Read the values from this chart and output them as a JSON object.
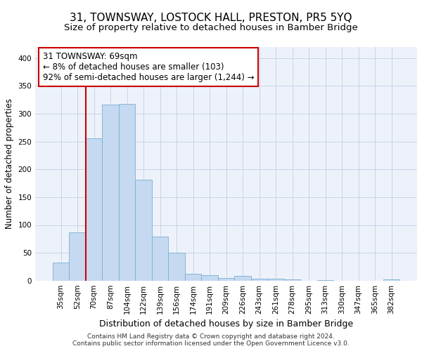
{
  "title": "31, TOWNSWAY, LOSTOCK HALL, PRESTON, PR5 5YQ",
  "subtitle": "Size of property relative to detached houses in Bamber Bridge",
  "xlabel": "Distribution of detached houses by size in Bamber Bridge",
  "ylabel": "Number of detached properties",
  "footer1": "Contains HM Land Registry data © Crown copyright and database right 2024.",
  "footer2": "Contains public sector information licensed under the Open Government Licence v3.0.",
  "categories": [
    "35sqm",
    "52sqm",
    "70sqm",
    "87sqm",
    "104sqm",
    "122sqm",
    "139sqm",
    "156sqm",
    "174sqm",
    "191sqm",
    "209sqm",
    "226sqm",
    "243sqm",
    "261sqm",
    "278sqm",
    "295sqm",
    "313sqm",
    "330sqm",
    "347sqm",
    "365sqm",
    "382sqm"
  ],
  "values": [
    33,
    87,
    256,
    316,
    318,
    181,
    79,
    50,
    12,
    10,
    5,
    8,
    3,
    3,
    2,
    0,
    1,
    0,
    0,
    0,
    2
  ],
  "bar_color": "#c5d9f0",
  "bar_edge_color": "#7aafd4",
  "bar_width": 1.0,
  "vline_x": 1.5,
  "vline_color": "#cc0000",
  "annotation_line1": "31 TOWNSWAY: 69sqm",
  "annotation_line2": "← 8% of detached houses are smaller (103)",
  "annotation_line3": "92% of semi-detached houses are larger (1,244) →",
  "annotation_box_color": "#ffffff",
  "annotation_box_edge": "#cc0000",
  "ylim": [
    0,
    420
  ],
  "yticks": [
    0,
    50,
    100,
    150,
    200,
    250,
    300,
    350,
    400
  ],
  "grid_color": "#c8d4e8",
  "bg_color": "#edf2fa",
  "title_fontsize": 11,
  "subtitle_fontsize": 9.5,
  "xlabel_fontsize": 9,
  "ylabel_fontsize": 8.5,
  "tick_fontsize": 7.5,
  "annotation_fontsize": 8.5,
  "footer_fontsize": 6.5
}
